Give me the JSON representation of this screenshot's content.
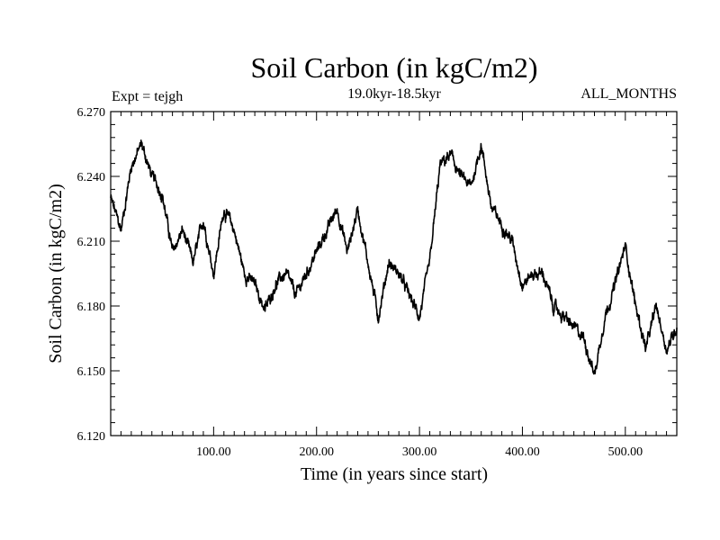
{
  "chart_data": {
    "type": "line",
    "title": "Soil Carbon (in kgC/m2)",
    "subtitle": "19.0kyr-18.5kyr",
    "experiment_label": "Expt = tejgh",
    "season_label": "ALL_MONTHS",
    "xlabel": "Time (in years since start)",
    "ylabel": "Soil Carbon (in kgC/m2)",
    "xlim": [
      0,
      550
    ],
    "ylim": [
      6.12,
      6.27
    ],
    "xticks": [
      100,
      200,
      300,
      400,
      500
    ],
    "xtick_labels": [
      "100.00",
      "200.00",
      "300.00",
      "400.00",
      "500.00"
    ],
    "yticks": [
      6.12,
      6.15,
      6.18,
      6.21,
      6.24,
      6.27
    ],
    "ytick_labels": [
      "6.120",
      "6.150",
      "6.180",
      "6.210",
      "6.240",
      "6.270"
    ],
    "grid": false,
    "series": [
      {
        "name": "tejgh",
        "color": "#000000",
        "x": [
          0,
          10,
          20,
          30,
          40,
          50,
          60,
          70,
          80,
          90,
          100,
          110,
          120,
          130,
          140,
          150,
          160,
          170,
          180,
          190,
          200,
          210,
          220,
          230,
          240,
          250,
          260,
          270,
          280,
          290,
          300,
          310,
          320,
          330,
          340,
          350,
          360,
          370,
          380,
          390,
          400,
          410,
          420,
          430,
          440,
          450,
          460,
          470,
          480,
          490,
          500,
          510,
          520,
          530,
          540,
          550
        ],
        "y": [
          6.23,
          6.215,
          6.245,
          6.255,
          6.24,
          6.232,
          6.205,
          6.215,
          6.2,
          6.22,
          6.195,
          6.225,
          6.215,
          6.195,
          6.19,
          6.178,
          6.19,
          6.195,
          6.185,
          6.195,
          6.205,
          6.215,
          6.225,
          6.205,
          6.225,
          6.2,
          6.175,
          6.2,
          6.195,
          6.185,
          6.175,
          6.2,
          6.245,
          6.25,
          6.24,
          6.235,
          6.255,
          6.225,
          6.218,
          6.21,
          6.19,
          6.195,
          6.195,
          6.18,
          6.175,
          6.17,
          6.165,
          6.148,
          6.175,
          6.19,
          6.208,
          6.18,
          6.16,
          6.18,
          6.16,
          6.17
        ]
      }
    ]
  }
}
